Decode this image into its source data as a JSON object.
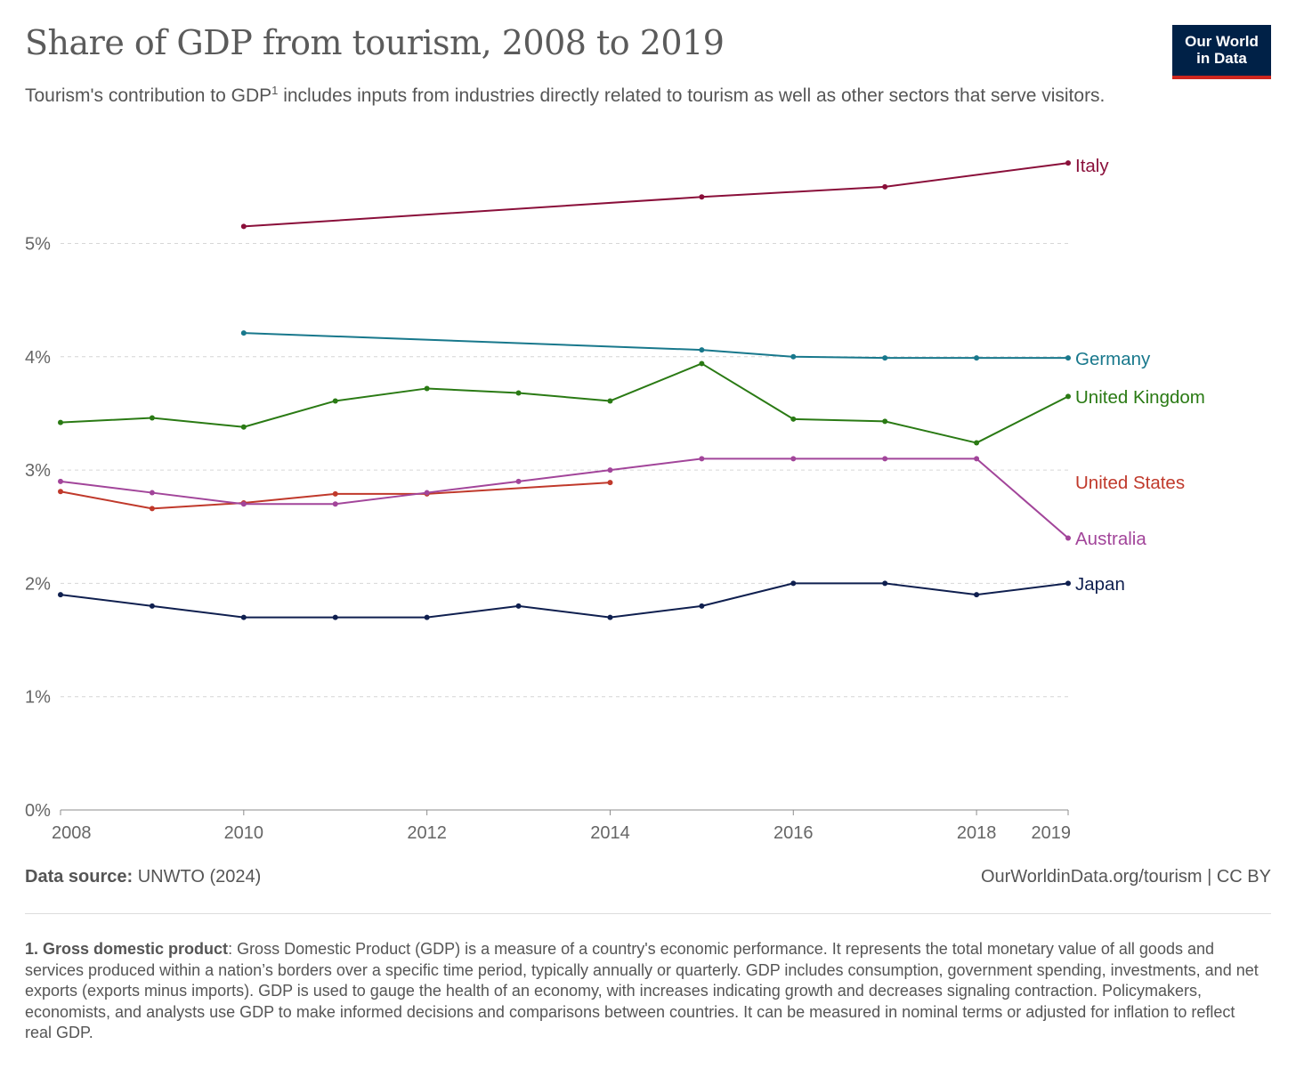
{
  "header": {
    "title": "Share of GDP from tourism, 2008 to 2019",
    "subtitle_pre": "Tourism's contribution to GDP",
    "subtitle_sup": "1",
    "subtitle_post": " includes inputs from industries directly related to tourism as well as other sectors that serve visitors.",
    "logo_line1": "Our World",
    "logo_line2": "in Data"
  },
  "footer": {
    "source_label": "Data source:",
    "source_value": " UNWTO (2024)",
    "credit": "OurWorldinData.org/tourism | CC BY",
    "footnote_label": "1. Gross domestic product",
    "footnote_text": ": Gross Domestic Product (GDP) is a measure of a country's economic performance. It represents the total monetary value of all goods and services produced within a nation’s borders over a specific time period, typically annually or quarterly. GDP includes consumption, government spending, investments, and net exports (exports minus imports). GDP is used to gauge the health of an economy, with increases indicating growth and decreases signaling contraction. Policymakers, economists, and analysts use GDP to make informed decisions and comparisons between countries. It can be measured in nominal terms or adjusted for inflation to reflect real GDP."
  },
  "colors": {
    "Italy": "#8a0f3a",
    "Germany": "#18788c",
    "United Kingdom": "#2a7a14",
    "United States": "#c0392b",
    "Australia": "#a2459a",
    "Japan": "#0f1f4f"
  },
  "chart_data": {
    "type": "line",
    "title": "Share of GDP from tourism, 2008 to 2019",
    "xlabel": "",
    "ylabel": "",
    "xlim": [
      2008,
      2019
    ],
    "ylim": [
      0,
      5.8
    ],
    "yticks": [
      0,
      1,
      2,
      3,
      4,
      5
    ],
    "ytick_labels": [
      "0%",
      "1%",
      "2%",
      "3%",
      "4%",
      "5%"
    ],
    "xticks": [
      2008,
      2010,
      2012,
      2014,
      2016,
      2018,
      2019
    ],
    "xtick_labels": [
      "2008",
      "2010",
      "2012",
      "2014",
      "2016",
      "2018",
      "2019"
    ],
    "grid": true,
    "legend": "line-end labels",
    "series": [
      {
        "name": "Italy",
        "x": [
          2010,
          2015,
          2017,
          2019
        ],
        "values": [
          5.15,
          5.41,
          5.5,
          5.71
        ]
      },
      {
        "name": "Germany",
        "x": [
          2010,
          2015,
          2016,
          2017,
          2018,
          2019
        ],
        "values": [
          4.21,
          4.06,
          4.0,
          3.99,
          3.99,
          3.99
        ]
      },
      {
        "name": "United Kingdom",
        "x": [
          2008,
          2009,
          2010,
          2011,
          2012,
          2013,
          2014,
          2015,
          2016,
          2017,
          2018,
          2019
        ],
        "values": [
          3.42,
          3.46,
          3.38,
          3.61,
          3.72,
          3.68,
          3.61,
          3.94,
          3.45,
          3.43,
          3.24,
          3.65
        ]
      },
      {
        "name": "United States",
        "x": [
          2008,
          2009,
          2010,
          2011,
          2012,
          2014
        ],
        "values": [
          2.81,
          2.66,
          2.71,
          2.79,
          2.79,
          2.89
        ]
      },
      {
        "name": "Australia",
        "x": [
          2008,
          2009,
          2010,
          2011,
          2012,
          2013,
          2014,
          2015,
          2016,
          2017,
          2018,
          2019
        ],
        "values": [
          2.9,
          2.8,
          2.7,
          2.7,
          2.8,
          2.9,
          3.0,
          3.1,
          3.1,
          3.1,
          3.1,
          2.4
        ]
      },
      {
        "name": "Japan",
        "x": [
          2008,
          2009,
          2010,
          2011,
          2012,
          2013,
          2014,
          2015,
          2016,
          2017,
          2018,
          2019
        ],
        "values": [
          1.9,
          1.8,
          1.7,
          1.7,
          1.7,
          1.8,
          1.7,
          1.8,
          2.0,
          2.0,
          1.9,
          2.0
        ]
      }
    ]
  }
}
